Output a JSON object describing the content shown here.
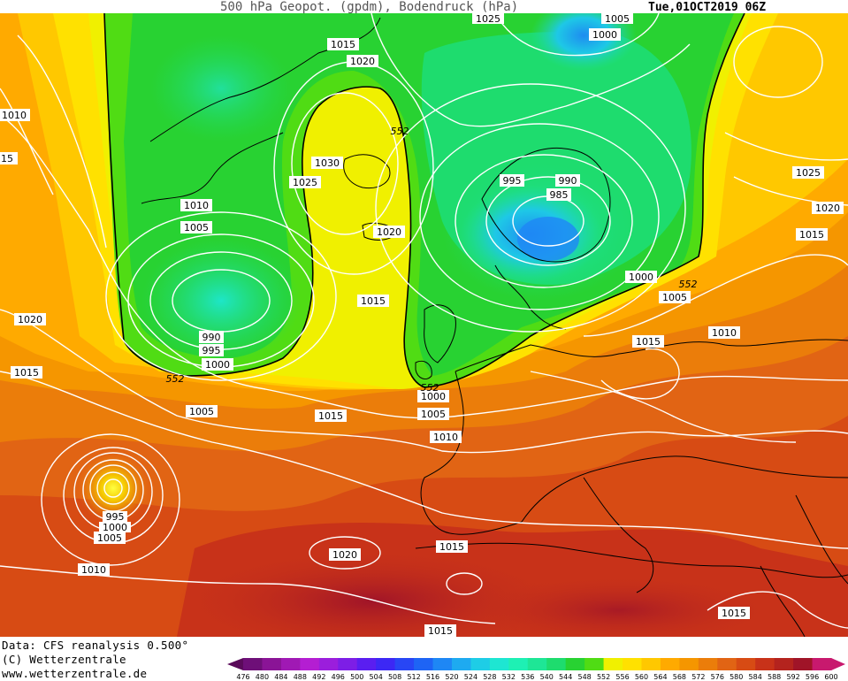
{
  "header": {
    "title": "500 hPa Geopot. (gpdm), Bodendruck (hPa)",
    "datetime": "Tue,01OCT2019 06Z"
  },
  "footer": {
    "data_source": "Data: CFS reanalysis 0.500°",
    "copyright": "(C) Wetterzentrale",
    "website": "www.wetterzentrale.de"
  },
  "legend": {
    "values": [
      "476",
      "480",
      "484",
      "488",
      "492",
      "496",
      "500",
      "504",
      "508",
      "512",
      "516",
      "520",
      "524",
      "528",
      "532",
      "536",
      "540",
      "544",
      "548",
      "552",
      "556",
      "560",
      "564",
      "568",
      "572",
      "576",
      "580",
      "584",
      "588",
      "592",
      "596",
      "600"
    ],
    "colors": [
      "#5a0a5a",
      "#6e0f78",
      "#8a1496",
      "#a019b4",
      "#b41ed2",
      "#9b1edc",
      "#7d1ee6",
      "#5a1ef0",
      "#3c28f5",
      "#2846f5",
      "#1e64f5",
      "#1e87f5",
      "#1eaaf0",
      "#1ecde6",
      "#1ee6d2",
      "#1ef0b4",
      "#1ee696",
      "#1edc6e",
      "#28d232",
      "#50dc14",
      "#f0f000",
      "#ffe100",
      "#ffc800",
      "#ffaa00",
      "#f59600",
      "#eb7d0a",
      "#e16414",
      "#d74b14",
      "#c83219",
      "#b4231e",
      "#a01428",
      "#c8196e"
    ]
  },
  "map": {
    "gph_552_label": "552",
    "pressure_labels": [
      {
        "text": "1015"
      },
      {
        "text": "1020"
      },
      {
        "text": "1010"
      },
      {
        "text": "15"
      },
      {
        "text": "1030"
      },
      {
        "text": "1025"
      },
      {
        "text": "1020"
      },
      {
        "text": "1010"
      },
      {
        "text": "1005"
      },
      {
        "text": "1015"
      },
      {
        "text": "990"
      },
      {
        "text": "995"
      },
      {
        "text": "1000"
      },
      {
        "text": "1020"
      },
      {
        "text": "1015"
      },
      {
        "text": "1005"
      },
      {
        "text": "1015"
      },
      {
        "text": "1000"
      },
      {
        "text": "1005"
      },
      {
        "text": "1010"
      },
      {
        "text": "995"
      },
      {
        "text": "990"
      },
      {
        "text": "985"
      },
      {
        "text": "1000"
      },
      {
        "text": "1005"
      },
      {
        "text": "1025"
      },
      {
        "text": "1020"
      },
      {
        "text": "1015"
      },
      {
        "text": "1010"
      },
      {
        "text": "1015"
      },
      {
        "text": "1025"
      },
      {
        "text": "1005"
      },
      {
        "text": "1000"
      },
      {
        "text": "995"
      },
      {
        "text": "1000"
      },
      {
        "text": "1005"
      },
      {
        "text": "1010"
      },
      {
        "text": "1020"
      },
      {
        "text": "1015"
      },
      {
        "text": "1015"
      },
      {
        "text": "1015"
      }
    ]
  }
}
